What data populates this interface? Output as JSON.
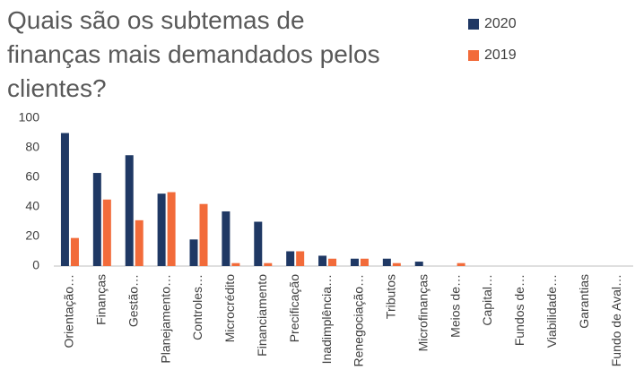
{
  "chart_data": {
    "type": "bar",
    "title": "Quais são os subtemas de finanças mais demandados pelos clientes?",
    "categories": [
      "Orientação…",
      "Finanças",
      "Gestão…",
      "Planejamento…",
      "Controles…",
      "Microcrédito",
      "Financiamento",
      "Precificação",
      "Inadimplência…",
      "Renegociação…",
      "Tributos",
      "Microfinanças",
      "Meios de…",
      "Capital…",
      "Fundos de…",
      "Viabilidade…",
      "Garantias",
      "Fundo de Aval…"
    ],
    "series": [
      {
        "name": "2020",
        "color": "#1f3864",
        "values": [
          90,
          63,
          75,
          49,
          18,
          37,
          30,
          10,
          7,
          5,
          5,
          3,
          0,
          0,
          0,
          0,
          0,
          0
        ]
      },
      {
        "name": "2019",
        "color": "#f26b3a",
        "values": [
          19,
          45,
          31,
          50,
          42,
          2,
          2,
          10,
          5,
          5,
          2,
          0,
          2,
          0,
          0,
          0,
          0,
          0
        ]
      }
    ],
    "ylim": [
      0,
      100
    ],
    "yticks": [
      0,
      20,
      40,
      60,
      80,
      100
    ],
    "grid": false,
    "legend": "top-right"
  }
}
